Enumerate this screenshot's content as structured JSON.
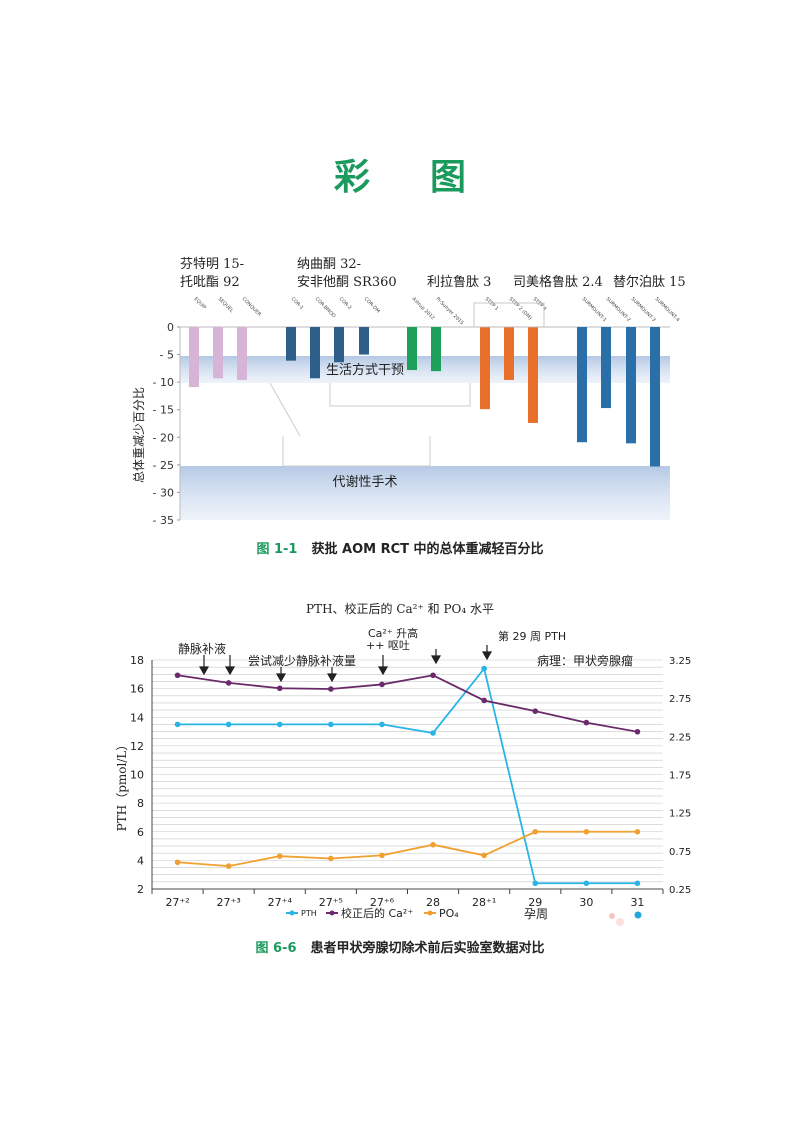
{
  "page": {
    "title": "彩图"
  },
  "figure1": {
    "caption_num": "图 1-1",
    "caption_text": "获批 AOM RCT 中的总体重减轻百分比",
    "drug_groups": [
      {
        "line1": "芬特明 15-",
        "line2": "托吡酯 92"
      },
      {
        "line1": "纳曲酮 32-",
        "line2": "安非他酮 SR360"
      },
      {
        "line1": "利拉鲁肽 3",
        "line2": ""
      },
      {
        "line1": "司美格鲁肽 2.4",
        "line2": ""
      },
      {
        "line1": "替尔泊肽 15",
        "line2": ""
      }
    ],
    "ylabel": "总体重减少百分比",
    "band_lifestyle": "生活方式干预",
    "band_surgery": "代谢性手术"
  },
  "figure2": {
    "caption_num": "图 6-6",
    "caption_text": "患者甲状旁腺切除术前后实验室数据对比",
    "title": "PTH、校正后的 Ca²⁺ 和 PO₄ 水平",
    "ylabel_left": "PTH（pmol/L）",
    "xlabel": "孕周",
    "annotations": [
      {
        "text": "静脉补液"
      },
      {
        "text": "尝试减少静脉补液量"
      },
      {
        "text": "Ca²⁺ 升高"
      },
      {
        "text": "++ 呕吐"
      },
      {
        "text": "第 29 周 PTH"
      },
      {
        "text": "病理：甲状旁腺瘤"
      }
    ],
    "legend": [
      "PTH",
      "校正后的 Ca²⁺",
      "PO₄"
    ]
  },
  "chart_data": [
    {
      "type": "bar",
      "ylabel": "总体重减少百分比",
      "ylim": [
        -35,
        0
      ],
      "yticks": [
        "0",
        "- 5",
        "- 10",
        "- 15",
        "- 20",
        "- 25",
        "- 30",
        "- 35"
      ],
      "categories": [
        "EQUIP",
        "SEQUEL",
        "CONQUER",
        "COR-1",
        "COR-BMOD",
        "COR-2",
        "COR-DM",
        "Astrup 2012",
        "Pi-Sunyer 2015",
        "STEP 1",
        "STEP 2 (DM)",
        "STEP 4",
        "SURMOUNT-1",
        "SURMOUNT-2",
        "SURMOUNT-3",
        "SURMOUNT-4"
      ],
      "values": [
        -10.9,
        -9.3,
        -9.6,
        -6.1,
        -9.3,
        -6.4,
        -5.0,
        -7.8,
        -8.0,
        -14.9,
        -9.6,
        -17.4,
        -20.9,
        -14.7,
        -21.1,
        -25.3
      ],
      "colors": [
        "#d6b4d6",
        "#d6b4d6",
        "#d6b4d6",
        "#2d5f8a",
        "#2d5f8a",
        "#2d5f8a",
        "#2d5f8a",
        "#1ea05a",
        "#1ea05a",
        "#e8702a",
        "#e8702a",
        "#e8702a",
        "#2a6fa8",
        "#2a6fa8",
        "#2a6fa8",
        "#2a6fa8"
      ]
    },
    {
      "type": "line",
      "title": "PTH、校正后的 Ca²⁺ 和 PO₄ 水平",
      "xlabel": "孕周",
      "ylabel": "PTH（pmol/L）",
      "x": [
        "27⁺²",
        "27⁺³",
        "27⁺⁴",
        "27⁺⁵",
        "27⁺⁶",
        "28",
        "28⁺¹",
        "29",
        "30",
        "31"
      ],
      "ylim": [
        2,
        18
      ],
      "yticks": [
        "2",
        "4",
        "6",
        "8",
        "10",
        "12",
        "14",
        "16",
        "18"
      ],
      "y2lim": [
        0.25,
        3.25
      ],
      "y2ticks": [
        "0.25",
        "0.75",
        "1.25",
        "1.75",
        "2.25",
        "2.75",
        "3.25"
      ],
      "series": [
        {
          "name": "PTH",
          "axis": "left",
          "color": "#29b4e4",
          "values": [
            13.5,
            13.5,
            13.5,
            13.5,
            13.5,
            12.9,
            17.4,
            2.4,
            2.4,
            2.4
          ]
        },
        {
          "name": "校正后的 Ca²⁺",
          "axis": "right",
          "color": "#6b2a6a",
          "values": [
            3.05,
            2.95,
            2.88,
            2.87,
            2.93,
            3.05,
            2.72,
            2.58,
            2.43,
            2.31
          ]
        },
        {
          "name": "PO₄",
          "axis": "right",
          "color": "#f0a030",
          "values": [
            0.6,
            0.55,
            0.68,
            0.65,
            0.69,
            0.83,
            0.69,
            1.0,
            1.0,
            1.0
          ]
        }
      ]
    }
  ]
}
